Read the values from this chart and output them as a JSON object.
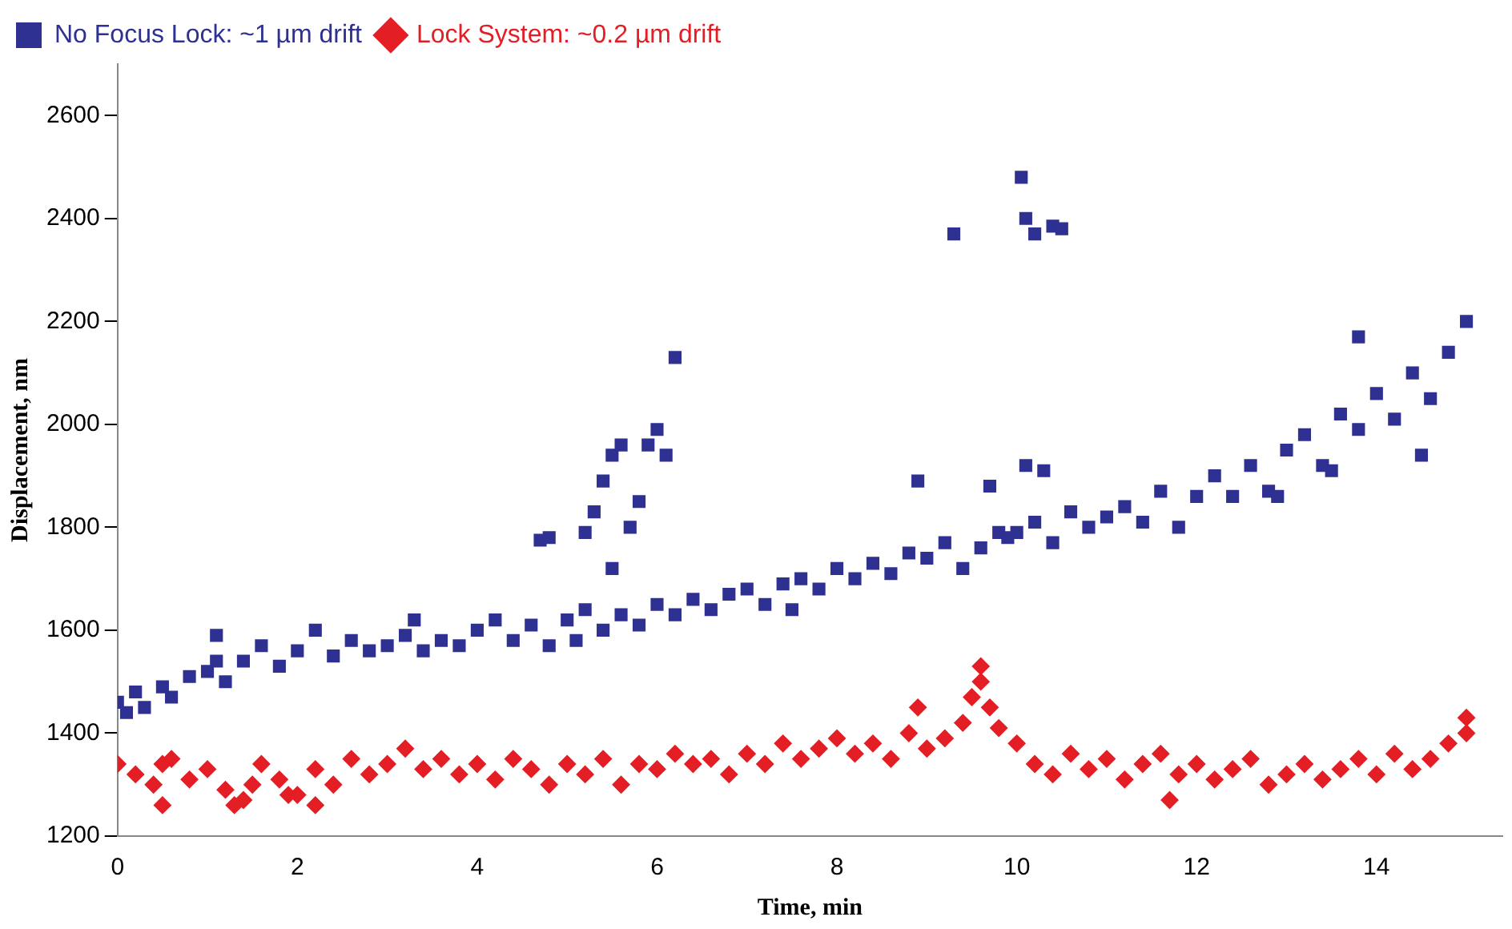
{
  "chart_data": {
    "type": "scatter",
    "xlabel": "Time, min",
    "ylabel": "Displacement, nm",
    "xlim": [
      0,
      15.4
    ],
    "ylim": [
      1200,
      2700
    ],
    "xticks": [
      0,
      2,
      4,
      6,
      8,
      10,
      12,
      14
    ],
    "yticks": [
      1200,
      1400,
      1600,
      1800,
      2000,
      2200,
      2400,
      2600
    ],
    "grid": false,
    "legend": "top left",
    "series": [
      {
        "name": "No Focus Lock: ~1 µm drift",
        "color": "#2e3192",
        "marker": "square",
        "x": [
          0,
          0.1,
          0.2,
          0.3,
          0.5,
          0.6,
          0.8,
          1,
          1.1,
          1.2,
          1.4,
          1.6,
          1.8,
          2,
          2.2,
          2.4,
          2.6,
          2.8,
          3,
          3.2,
          3.4,
          3.6,
          3.8,
          4,
          4.2,
          4.4,
          4.6,
          4.8,
          5,
          5.2,
          5.4,
          5.6,
          5.8,
          6,
          6.2,
          6.4,
          6.6,
          6.8,
          7,
          7.2,
          7.4,
          7.6,
          7.8,
          8,
          8.2,
          8.4,
          8.6,
          8.8,
          9,
          9.2,
          9.4,
          9.6,
          9.8,
          10,
          10.2,
          10.4,
          10.6,
          10.8,
          11,
          11.2,
          11.4,
          11.6,
          11.8,
          12,
          12.2,
          12.4,
          12.6,
          12.8,
          13,
          13.2,
          13.4,
          13.6,
          13.8,
          14,
          14.2,
          14.4,
          14.6,
          14.8,
          15,
          1.1,
          3.3,
          5.1,
          7.5,
          9.9,
          12.9,
          13.5,
          14.5,
          4.7,
          4.8,
          5.2,
          5.3,
          5.4,
          5.5,
          5.5,
          5.6,
          5.7,
          5.8,
          5.9,
          6,
          6.1,
          6.2,
          8.9,
          9.3,
          9.7,
          10.05,
          10.1,
          10.2,
          10.1,
          10.3,
          10.4,
          10.5,
          13.8
        ],
        "values": [
          1460,
          1440,
          1480,
          1450,
          1490,
          1470,
          1510,
          1520,
          1590,
          1500,
          1540,
          1570,
          1530,
          1560,
          1600,
          1550,
          1580,
          1560,
          1570,
          1590,
          1560,
          1580,
          1570,
          1600,
          1620,
          1580,
          1610,
          1570,
          1620,
          1640,
          1600,
          1630,
          1610,
          1650,
          1630,
          1660,
          1640,
          1670,
          1680,
          1650,
          1690,
          1700,
          1680,
          1720,
          1700,
          1730,
          1710,
          1750,
          1740,
          1770,
          1720,
          1760,
          1790,
          1790,
          1810,
          1770,
          1830,
          1800,
          1820,
          1840,
          1810,
          1870,
          1800,
          1860,
          1900,
          1860,
          1920,
          1870,
          1950,
          1980,
          1920,
          2020,
          1990,
          2060,
          2010,
          2100,
          2050,
          2140,
          2200,
          1540,
          1620,
          1580,
          1640,
          1780,
          1860,
          1910,
          1940,
          1775,
          1780,
          1790,
          1830,
          1890,
          1940,
          1720,
          1960,
          1800,
          1850,
          1960,
          1990,
          1940,
          2130,
          1890,
          2370,
          1880,
          2480,
          2400,
          2370,
          1920,
          1910,
          2385,
          2380,
          2170
        ]
      },
      {
        "name": "Lock System: ~0.2 µm drift",
        "color": "#e31e24",
        "marker": "diamond",
        "x": [
          0,
          0.2,
          0.4,
          0.5,
          0.6,
          0.8,
          1,
          1.2,
          1.4,
          1.5,
          1.6,
          1.8,
          2,
          2.2,
          2.4,
          2.6,
          2.8,
          3,
          3.2,
          3.4,
          3.6,
          3.8,
          4,
          4.2,
          4.4,
          4.6,
          4.8,
          5,
          5.2,
          5.4,
          5.6,
          5.8,
          6,
          6.2,
          6.4,
          6.6,
          6.8,
          7,
          7.2,
          7.4,
          7.6,
          7.8,
          8,
          8.2,
          8.4,
          8.6,
          8.8,
          9,
          9.2,
          9.4,
          9.5,
          9.6,
          9.7,
          9.8,
          10,
          10.2,
          10.4,
          10.6,
          10.8,
          11,
          11.2,
          11.4,
          11.6,
          11.8,
          12,
          12.2,
          12.4,
          12.6,
          12.8,
          13,
          13.2,
          13.4,
          13.6,
          13.8,
          14,
          14.2,
          14.4,
          14.6,
          14.8,
          15,
          0.5,
          1.3,
          1.9,
          2.2,
          8.9,
          9.6,
          11.7,
          15
        ],
        "values": [
          1340,
          1320,
          1300,
          1260,
          1350,
          1310,
          1330,
          1290,
          1270,
          1300,
          1340,
          1310,
          1280,
          1330,
          1300,
          1350,
          1320,
          1340,
          1370,
          1330,
          1350,
          1320,
          1340,
          1310,
          1350,
          1330,
          1300,
          1340,
          1320,
          1350,
          1300,
          1340,
          1330,
          1360,
          1340,
          1350,
          1320,
          1360,
          1340,
          1380,
          1350,
          1370,
          1390,
          1360,
          1380,
          1350,
          1400,
          1370,
          1390,
          1420,
          1470,
          1500,
          1450,
          1410,
          1380,
          1340,
          1320,
          1360,
          1330,
          1350,
          1310,
          1340,
          1360,
          1320,
          1340,
          1310,
          1330,
          1350,
          1300,
          1320,
          1340,
          1310,
          1330,
          1350,
          1320,
          1360,
          1330,
          1350,
          1380,
          1400,
          1340,
          1260,
          1280,
          1260,
          1450,
          1530,
          1270,
          1430
        ]
      }
    ]
  }
}
